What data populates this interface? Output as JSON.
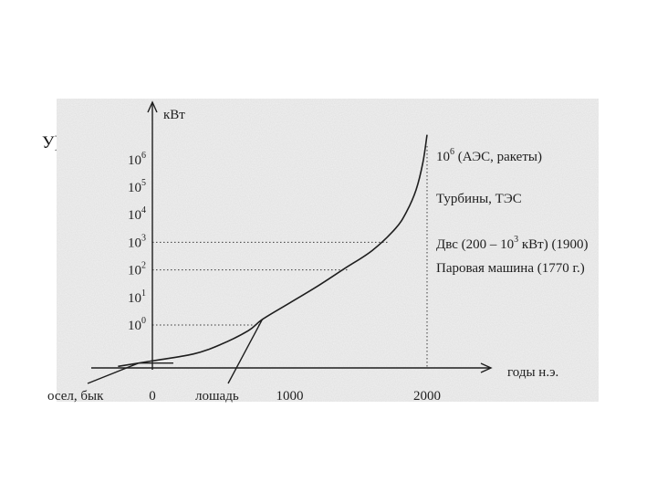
{
  "slide": {
    "stray_text": "У]"
  },
  "chart_data": {
    "type": "line",
    "ylabel": "кВт",
    "xlabel": "годы н.э.",
    "x_ticks": [
      {
        "value": 0,
        "label": "0"
      },
      {
        "value": 1000,
        "label": "1000"
      },
      {
        "value": 2000,
        "label": "2000"
      }
    ],
    "y_ticks": [
      {
        "exp": 0,
        "label": "10",
        "sup": "0"
      },
      {
        "exp": 1,
        "label": "10",
        "sup": "1"
      },
      {
        "exp": 2,
        "label": "10",
        "sup": "2"
      },
      {
        "exp": 3,
        "label": "10",
        "sup": "3"
      },
      {
        "exp": 4,
        "label": "10",
        "sup": "4"
      },
      {
        "exp": 5,
        "label": "10",
        "sup": "5"
      },
      {
        "exp": 6,
        "label": "10",
        "sup": "6"
      }
    ],
    "xlim": [
      -250,
      2450
    ],
    "series": [
      {
        "name": "",
        "points": [
          {
            "x": -250,
            "y": -1.5
          },
          {
            "x": 0,
            "y": -1.3
          },
          {
            "x": 300,
            "y": -1.05
          },
          {
            "x": 500,
            "y": -0.7
          },
          {
            "x": 700,
            "y": -0.2
          },
          {
            "x": 800,
            "y": 0.2
          },
          {
            "x": 1000,
            "y": 0.8
          },
          {
            "x": 1200,
            "y": 1.4
          },
          {
            "x": 1400,
            "y": 2.05
          },
          {
            "x": 1600,
            "y": 2.7
          },
          {
            "x": 1770,
            "y": 3.5
          },
          {
            "x": 1850,
            "y": 4.1
          },
          {
            "x": 1920,
            "y": 4.9
          },
          {
            "x": 1970,
            "y": 5.9
          },
          {
            "x": 2000,
            "y": 6.9
          }
        ]
      }
    ],
    "reference_lines": [
      {
        "exp": 0,
        "x_end": 780
      },
      {
        "exp": 2,
        "x_end": 1430
      },
      {
        "exp": 3,
        "x_end": 1720
      }
    ],
    "vertical_line": {
      "x": 2000
    },
    "annotations": [
      {
        "text": "10",
        "sup": "6",
        "rest": " (АЭС, ракеты)",
        "row": 0
      },
      {
        "text": "Турбины, ТЭС",
        "row": 1
      },
      {
        "text": "Двс (200 – 10",
        "sup": "3",
        "rest": " кВт) (1900)",
        "row": 2
      },
      {
        "text": "Паровая машина (1770 г.)",
        "row": 3
      }
    ],
    "pointer_labels": [
      {
        "text": "осел, бык",
        "target_x": -100
      },
      {
        "text": "лошадь",
        "target_x": 800
      }
    ],
    "grid": false
  }
}
